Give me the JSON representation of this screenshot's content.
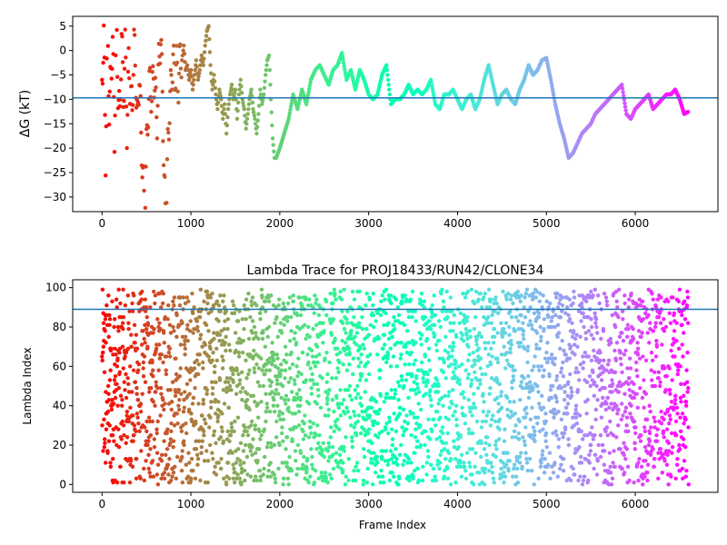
{
  "chart_data": [
    {
      "type": "scatter",
      "title": "",
      "xlabel": "",
      "ylabel": "ΔG (kT)",
      "xlim": [
        -330,
        6930
      ],
      "ylim": [
        -33,
        7
      ],
      "xticks": [
        0,
        1000,
        2000,
        3000,
        4000,
        5000,
        6000
      ],
      "yticks": [
        5,
        0,
        -5,
        -10,
        -15,
        -20,
        -25,
        -30
      ],
      "hline": -9.7,
      "colormap": "rainbow",
      "color_by": "frame index (red → early, violet → late)",
      "trace_points": [
        [
          0,
          -6
        ],
        [
          20,
          3
        ],
        [
          40,
          -22
        ],
        [
          60,
          6
        ],
        [
          80,
          -12
        ],
        [
          100,
          -5
        ],
        [
          120,
          2
        ],
        [
          140,
          -18
        ],
        [
          160,
          7
        ],
        [
          180,
          -8
        ],
        [
          200,
          -14
        ],
        [
          220,
          4
        ],
        [
          240,
          -10
        ],
        [
          260,
          1
        ],
        [
          280,
          -16
        ],
        [
          300,
          -3
        ],
        [
          320,
          -9
        ],
        [
          340,
          -12
        ],
        [
          360,
          2
        ],
        [
          380,
          -6
        ],
        [
          400,
          -15
        ],
        [
          420,
          -4
        ],
        [
          440,
          -18
        ],
        [
          460,
          -25
        ],
        [
          480,
          -33
        ],
        [
          500,
          -20
        ],
        [
          520,
          -12
        ],
        [
          540,
          -6
        ],
        [
          560,
          -10
        ],
        [
          580,
          -4
        ],
        [
          600,
          -9
        ],
        [
          620,
          -14
        ],
        [
          640,
          -2
        ],
        [
          660,
          3
        ],
        [
          680,
          -8
        ],
        [
          700,
          -28
        ],
        [
          720,
          -33
        ],
        [
          740,
          -20
        ],
        [
          760,
          -12
        ],
        [
          780,
          -6
        ],
        [
          800,
          -2
        ],
        [
          820,
          -5
        ],
        [
          840,
          -3
        ],
        [
          860,
          -7
        ],
        [
          880,
          -1
        ],
        [
          900,
          -2
        ],
        [
          920,
          1
        ],
        [
          940,
          -4
        ],
        [
          960,
          -3
        ],
        [
          980,
          -6
        ],
        [
          1000,
          -4
        ],
        [
          1020,
          -8
        ],
        [
          1040,
          -5
        ],
        [
          1060,
          -2
        ],
        [
          1080,
          -6
        ],
        [
          1100,
          -4
        ],
        [
          1120,
          -1
        ],
        [
          1140,
          -3
        ],
        [
          1160,
          1
        ],
        [
          1180,
          4
        ],
        [
          1200,
          5
        ],
        [
          1220,
          -3
        ],
        [
          1240,
          -8
        ],
        [
          1260,
          -5
        ],
        [
          1280,
          -9
        ],
        [
          1300,
          -12
        ],
        [
          1320,
          -8
        ],
        [
          1340,
          -10
        ],
        [
          1360,
          -14
        ],
        [
          1380,
          -11
        ],
        [
          1400,
          -17
        ],
        [
          1420,
          -12
        ],
        [
          1440,
          -9
        ],
        [
          1460,
          -7
        ],
        [
          1480,
          -10
        ],
        [
          1500,
          -8
        ],
        [
          1520,
          -14
        ],
        [
          1540,
          -9
        ],
        [
          1560,
          -6
        ],
        [
          1580,
          -10
        ],
        [
          1600,
          -12
        ],
        [
          1620,
          -16
        ],
        [
          1640,
          -13
        ],
        [
          1660,
          -10
        ],
        [
          1680,
          -8
        ],
        [
          1700,
          -12
        ],
        [
          1720,
          -14
        ],
        [
          1740,
          -17
        ],
        [
          1760,
          -13
        ],
        [
          1780,
          -8
        ],
        [
          1800,
          -11
        ],
        [
          1820,
          -9
        ],
        [
          1840,
          -5
        ],
        [
          1860,
          -2
        ],
        [
          1880,
          -1
        ],
        [
          1900,
          -10
        ],
        [
          1920,
          -18
        ],
        [
          1940,
          -22
        ],
        [
          1960,
          -22
        ],
        [
          1980,
          -21
        ],
        [
          2000,
          -20
        ],
        [
          2050,
          -17
        ],
        [
          2100,
          -14
        ],
        [
          2150,
          -9
        ],
        [
          2200,
          -12
        ],
        [
          2250,
          -8
        ],
        [
          2300,
          -11
        ],
        [
          2350,
          -6
        ],
        [
          2400,
          -4
        ],
        [
          2450,
          -3
        ],
        [
          2500,
          -5
        ],
        [
          2550,
          -7
        ],
        [
          2600,
          -4
        ],
        [
          2650,
          -3
        ],
        [
          2700,
          -0.5
        ],
        [
          2750,
          -6
        ],
        [
          2800,
          -4
        ],
        [
          2850,
          -8
        ],
        [
          2900,
          -4
        ],
        [
          2950,
          -6
        ],
        [
          3000,
          -9
        ],
        [
          3050,
          -10
        ],
        [
          3100,
          -9
        ],
        [
          3150,
          -5
        ],
        [
          3200,
          -3
        ],
        [
          3250,
          -11
        ],
        [
          3300,
          -10
        ],
        [
          3350,
          -10
        ],
        [
          3400,
          -9
        ],
        [
          3450,
          -7
        ],
        [
          3500,
          -9
        ],
        [
          3550,
          -8
        ],
        [
          3600,
          -9
        ],
        [
          3650,
          -8
        ],
        [
          3700,
          -6
        ],
        [
          3750,
          -11
        ],
        [
          3800,
          -12
        ],
        [
          3850,
          -9
        ],
        [
          3900,
          -9
        ],
        [
          3950,
          -8
        ],
        [
          4000,
          -10
        ],
        [
          4050,
          -12
        ],
        [
          4100,
          -10
        ],
        [
          4150,
          -9
        ],
        [
          4200,
          -12
        ],
        [
          4250,
          -10
        ],
        [
          4300,
          -6
        ],
        [
          4350,
          -3
        ],
        [
          4400,
          -7
        ],
        [
          4450,
          -11
        ],
        [
          4500,
          -9
        ],
        [
          4550,
          -8
        ],
        [
          4600,
          -10
        ],
        [
          4650,
          -11
        ],
        [
          4700,
          -8
        ],
        [
          4750,
          -6
        ],
        [
          4800,
          -3
        ],
        [
          4850,
          -5
        ],
        [
          4900,
          -4
        ],
        [
          4950,
          -2
        ],
        [
          5000,
          -1.5
        ],
        [
          5050,
          -6
        ],
        [
          5100,
          -11
        ],
        [
          5150,
          -15
        ],
        [
          5200,
          -18
        ],
        [
          5250,
          -22
        ],
        [
          5300,
          -21
        ],
        [
          5350,
          -19
        ],
        [
          5400,
          -17
        ],
        [
          5450,
          -16
        ],
        [
          5500,
          -15
        ],
        [
          5550,
          -13
        ],
        [
          5600,
          -12
        ],
        [
          5650,
          -11
        ],
        [
          5700,
          -10
        ],
        [
          5750,
          -9
        ],
        [
          5800,
          -8
        ],
        [
          5850,
          -7
        ],
        [
          5900,
          -13
        ],
        [
          5950,
          -14
        ],
        [
          6000,
          -12
        ],
        [
          6050,
          -11
        ],
        [
          6100,
          -10
        ],
        [
          6150,
          -9
        ],
        [
          6200,
          -12
        ],
        [
          6250,
          -11
        ],
        [
          6300,
          -10
        ],
        [
          6350,
          -9
        ],
        [
          6400,
          -9
        ],
        [
          6450,
          -8
        ],
        [
          6500,
          -10
        ],
        [
          6550,
          -13
        ],
        [
          6600,
          -12.5
        ]
      ]
    },
    {
      "type": "scatter",
      "title": "Lambda Trace for PROJ18433/RUN42/CLONE34",
      "xlabel": "Frame Index",
      "ylabel": "Lambda Index",
      "xlim": [
        -330,
        6930
      ],
      "ylim": [
        -4,
        104
      ],
      "xticks": [
        0,
        1000,
        2000,
        3000,
        4000,
        5000,
        6000
      ],
      "yticks": [
        0,
        20,
        40,
        60,
        80,
        100
      ],
      "hline": 89,
      "colormap": "rainbow",
      "color_by": "frame index (red → early, violet → late)",
      "frames": 6600,
      "lambda_range": [
        0,
        99
      ]
    }
  ]
}
